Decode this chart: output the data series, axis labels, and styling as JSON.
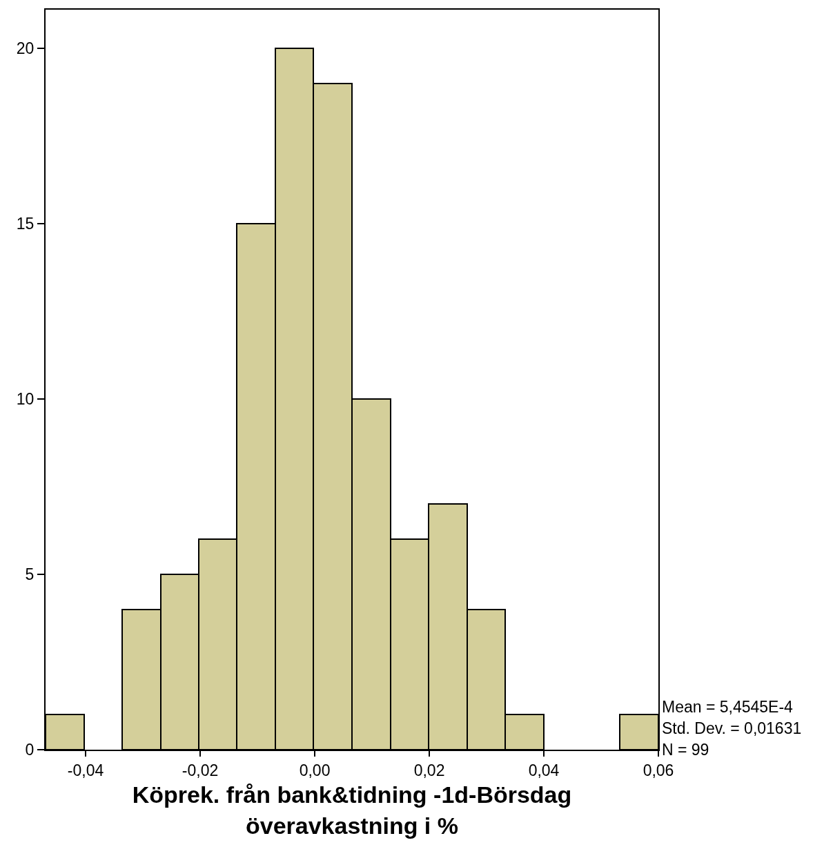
{
  "chart_data": {
    "type": "histogram",
    "xlabel": "Köprek. från bank&tidning -1d-Börsdag\növeravkastning i %",
    "bins": [
      -0.047,
      -0.0403,
      -0.0336,
      -0.0269,
      -0.0202,
      -0.0136,
      -0.0069,
      -0.0002,
      0.0065,
      0.0132,
      0.0199,
      0.0266,
      0.0333,
      0.04,
      0.0533,
      0.06
    ],
    "values": [
      1,
      0,
      4,
      5,
      6,
      15,
      20,
      19,
      10,
      6,
      7,
      4,
      1,
      0,
      1
    ],
    "color": "#d4cf9a",
    "xlim": [
      -0.047,
      0.06
    ],
    "xticks": [
      {
        "value": -0.04,
        "label": "-0,04"
      },
      {
        "value": -0.02,
        "label": "-0,02"
      },
      {
        "value": 0,
        "label": "0,00"
      },
      {
        "value": 0.02,
        "label": "0,02"
      },
      {
        "value": 0.04,
        "label": "0,04"
      },
      {
        "value": 0.06,
        "label": "0,06"
      }
    ],
    "ylim": [
      0,
      21.1
    ],
    "yticks": [
      0,
      5,
      10,
      15,
      20
    ],
    "annotations": [
      "Mean = 5,4545E-4",
      "Std. Dev. = 0,01631",
      "N = 99"
    ]
  }
}
